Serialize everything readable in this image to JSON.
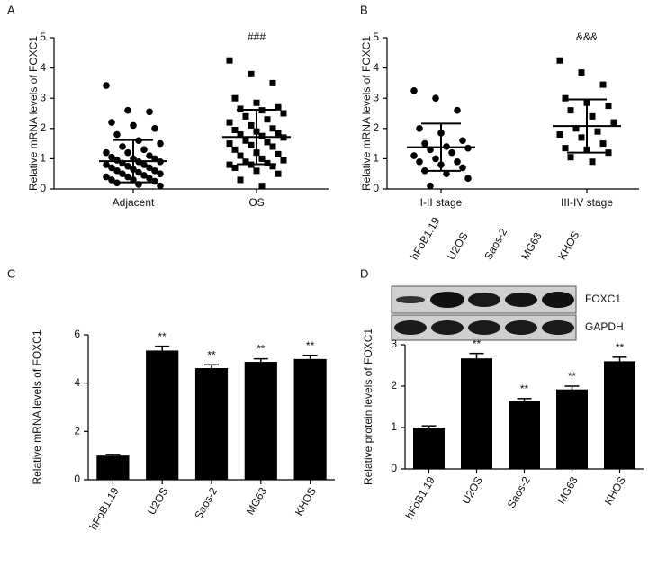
{
  "chart_data": [
    {
      "type": "dotplot",
      "panel_label": "A",
      "ylabel": "Relative mRNA levels of FOXC1",
      "categories": [
        "Adjacent",
        "OS"
      ],
      "markers": [
        "circle",
        "square"
      ],
      "color": "#000000",
      "values": [
        [
          3.42,
          2.6,
          2.55,
          2.2,
          2.1,
          2.0,
          1.8,
          1.6,
          1.5,
          1.4,
          1.3,
          1.2,
          1.2,
          1.1,
          1.05,
          1.0,
          1.0,
          0.95,
          0.9,
          0.9,
          0.85,
          0.8,
          0.8,
          0.75,
          0.7,
          0.7,
          0.65,
          0.6,
          0.6,
          0.55,
          0.5,
          0.5,
          0.45,
          0.4,
          0.4,
          0.35,
          0.3,
          0.3,
          0.25,
          0.2,
          0.15,
          0.1
        ],
        [
          4.25,
          3.8,
          3.5,
          3.0,
          2.85,
          2.7,
          2.65,
          2.6,
          2.5,
          2.4,
          2.3,
          2.2,
          2.1,
          2.0,
          1.95,
          1.9,
          1.85,
          1.8,
          1.75,
          1.7,
          1.6,
          1.55,
          1.5,
          1.45,
          1.4,
          1.3,
          1.2,
          1.15,
          1.1,
          1.0,
          0.95,
          0.9,
          0.85,
          0.8,
          0.8,
          0.75,
          0.7,
          0.6,
          0.5,
          0.3,
          0.1
        ]
      ],
      "mean": [
        0.92,
        1.72
      ],
      "sd": [
        0.7,
        0.9
      ],
      "annotations": [
        null,
        "###"
      ],
      "ylim": [
        0,
        5
      ],
      "yticks": [
        0,
        1,
        2,
        3,
        4,
        5
      ]
    },
    {
      "type": "dotplot",
      "panel_label": "B",
      "ylabel": "Relative mRNA levels of FOXC1",
      "categories": [
        "I-II stage",
        "III-IV stage"
      ],
      "markers": [
        "circle",
        "square"
      ],
      "color": "#000000",
      "values": [
        [
          3.25,
          3.0,
          2.6,
          2.0,
          1.85,
          1.6,
          1.5,
          1.4,
          1.35,
          1.3,
          1.2,
          1.1,
          1.0,
          0.9,
          0.9,
          0.8,
          0.7,
          0.6,
          0.5,
          0.35,
          0.1
        ],
        [
          4.25,
          3.85,
          3.45,
          3.0,
          2.85,
          2.75,
          2.6,
          2.4,
          2.2,
          2.0,
          1.9,
          1.8,
          1.7,
          1.5,
          1.35,
          1.3,
          1.2,
          1.05,
          0.9
        ]
      ],
      "mean": [
        1.38,
        2.08
      ],
      "sd": [
        0.78,
        0.88
      ],
      "annotations": [
        null,
        "&&&"
      ],
      "ylim": [
        0,
        5
      ],
      "yticks": [
        0,
        1,
        2,
        3,
        4,
        5
      ]
    },
    {
      "type": "bar",
      "panel_label": "C",
      "ylabel": "Relative mRNA levels of FOXC1",
      "categories": [
        "hFoB1.19",
        "U2OS",
        "Saos-2",
        "MG63",
        "KHOS"
      ],
      "color": "#000000",
      "values": [
        1.0,
        5.35,
        4.62,
        4.88,
        5.0
      ],
      "errors": [
        0.05,
        0.18,
        0.14,
        0.13,
        0.15
      ],
      "annotations": [
        null,
        "**",
        "**",
        "**",
        "**"
      ],
      "ylim": [
        0,
        6
      ],
      "yticks": [
        0,
        2,
        4,
        6
      ]
    },
    {
      "type": "bar",
      "panel_label": "D",
      "ylabel": "Relative protein levels of FOXC1",
      "categories": [
        "hFoB1.19",
        "U2OS",
        "Saos-2",
        "MG63",
        "KHOS"
      ],
      "color": "#000000",
      "blot_rows": [
        "FOXC1",
        "GAPDH"
      ],
      "values": [
        1.0,
        2.67,
        1.64,
        1.92,
        2.6
      ],
      "errors": [
        0.04,
        0.12,
        0.06,
        0.08,
        0.1
      ],
      "annotations": [
        null,
        "**",
        "**",
        "**",
        "**"
      ],
      "ylim": [
        0,
        3
      ],
      "yticks": [
        0,
        1,
        2,
        3
      ]
    }
  ]
}
